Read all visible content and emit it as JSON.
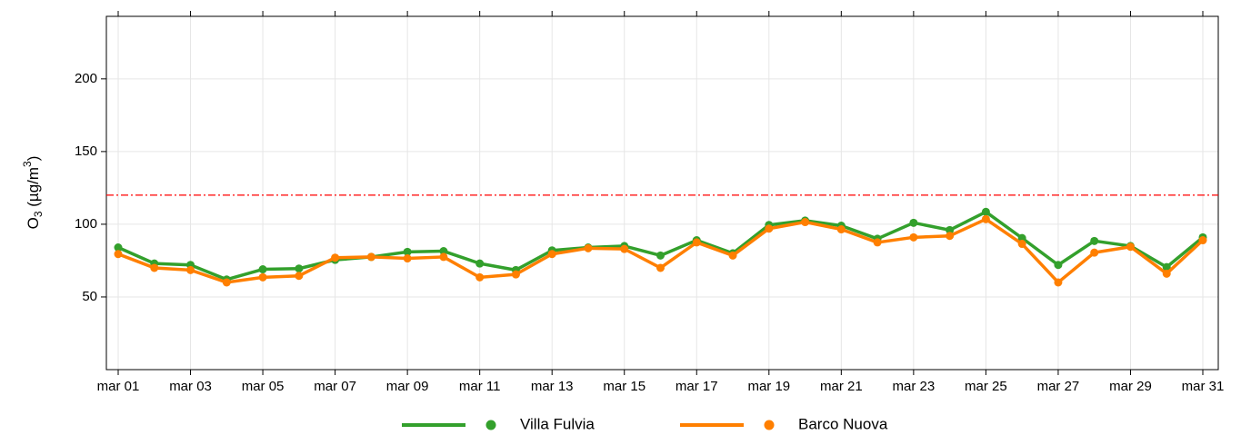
{
  "chart_data": {
    "type": "line",
    "y_label": {
      "text": "O",
      "sub": "3",
      "mid": " (µg/m",
      "sup": "3",
      "end": ")"
    },
    "categories": [
      "mar 01",
      null,
      "mar 03",
      null,
      "mar 05",
      null,
      "mar 07",
      null,
      "mar 09",
      null,
      "mar 11",
      null,
      "mar 13",
      null,
      "mar 15",
      null,
      "mar 17",
      null,
      "mar 19",
      null,
      "mar 21",
      null,
      "mar 23",
      null,
      "mar 25",
      null,
      "mar 27",
      null,
      "mar 29",
      null,
      "mar 31"
    ],
    "series": [
      {
        "name": "Villa Fulvia",
        "color": "#33a02c",
        "values": [
          84,
          73,
          72,
          62,
          69,
          69.5,
          75.5,
          77.5,
          81,
          81.5,
          73,
          68.5,
          82,
          84,
          85,
          78.5,
          89,
          80,
          99.5,
          102.5,
          99,
          90,
          101,
          96,
          108.5,
          90.5,
          72,
          88.5,
          85,
          70.5,
          91
        ]
      },
      {
        "name": "Barco Nuova",
        "color": "#ff7f00",
        "values": [
          79.5,
          70,
          68.5,
          60,
          63.5,
          64.5,
          77,
          77.5,
          76.5,
          77.5,
          63.5,
          65.5,
          79.5,
          83.5,
          83,
          70,
          87.5,
          78.5,
          97,
          101.5,
          96.5,
          87.5,
          91,
          92,
          103.5,
          86.5,
          60,
          80.5,
          84.5,
          66,
          89
        ]
      }
    ],
    "threshold": {
      "value": 120,
      "color": "#ff0000"
    },
    "ylim": [
      0,
      243
    ],
    "yticks": [
      50,
      100,
      150,
      200
    ],
    "grid": true
  }
}
